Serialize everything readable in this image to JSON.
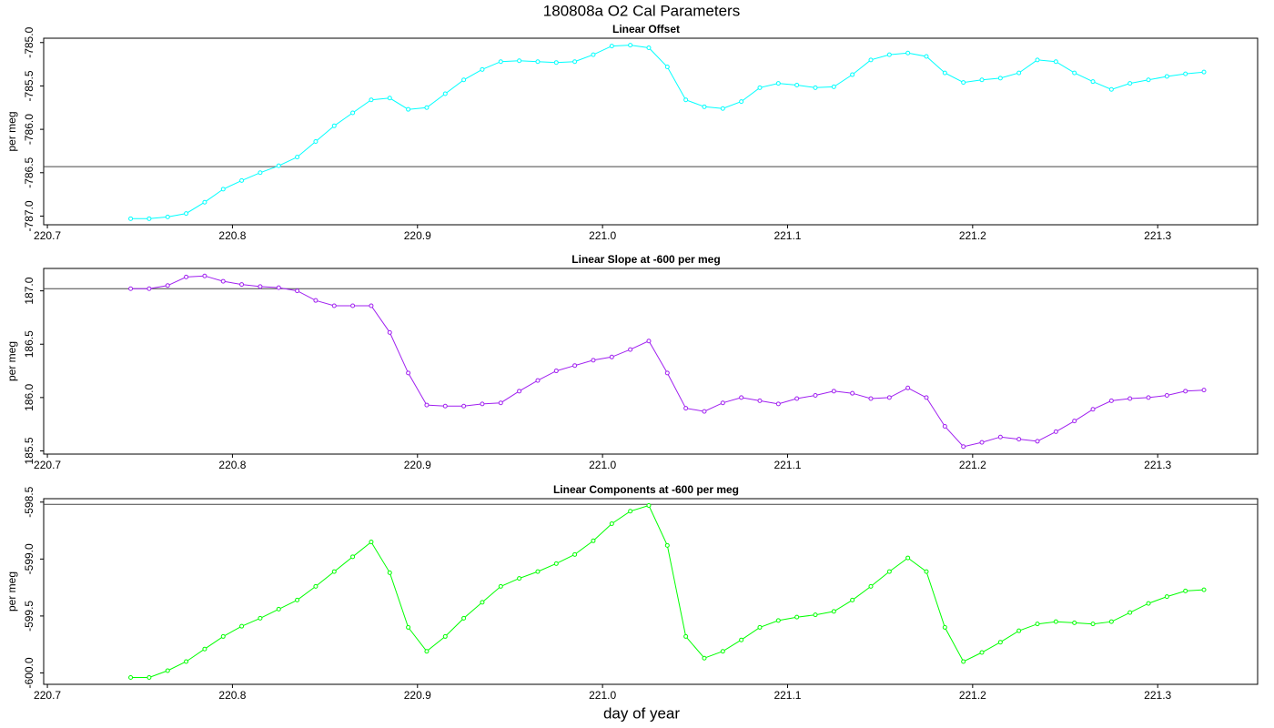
{
  "title": "180808a   O2 Cal Parameters",
  "x_label": "day of year",
  "chart_data": [
    {
      "type": "line",
      "title": "Linear Offset",
      "y_label": "per meg",
      "x": [
        220.745,
        220.755,
        220.765,
        220.775,
        220.785,
        220.795,
        220.805,
        220.815,
        220.825,
        220.835,
        220.845,
        220.855,
        220.865,
        220.875,
        220.885,
        220.895,
        220.905,
        220.915,
        220.925,
        220.935,
        220.945,
        220.955,
        220.965,
        220.975,
        220.985,
        220.995,
        221.005,
        221.015,
        221.025,
        221.035,
        221.045,
        221.055,
        221.065,
        221.075,
        221.085,
        221.095,
        221.105,
        221.115,
        221.125,
        221.135,
        221.145,
        221.155,
        221.165,
        221.175,
        221.185,
        221.195,
        221.205,
        221.215,
        221.225,
        221.235,
        221.245,
        221.255,
        221.265,
        221.275,
        221.285,
        221.295,
        221.305,
        221.315,
        221.325
      ],
      "series": [
        {
          "color": "#00ffff",
          "values": [
            -787.03,
            -787.03,
            -787.01,
            -786.97,
            -786.84,
            -786.69,
            -786.59,
            -786.5,
            -786.42,
            -786.32,
            -786.14,
            -785.96,
            -785.81,
            -785.66,
            -785.64,
            -785.77,
            -785.75,
            -785.59,
            -785.43,
            -785.31,
            -785.22,
            -785.21,
            -785.22,
            -785.23,
            -785.22,
            -785.14,
            -785.04,
            -785.03,
            -785.06,
            -785.28,
            -785.66,
            -785.74,
            -785.76,
            -785.68,
            -785.52,
            -785.47,
            -785.49,
            -785.52,
            -785.51,
            -785.37,
            -785.2,
            -785.14,
            -785.12,
            -785.16,
            -785.35,
            -785.46,
            -785.43,
            -785.41,
            -785.35,
            -785.2,
            -785.22,
            -785.35,
            -785.45,
            -785.54,
            -785.47,
            -785.43,
            -785.39,
            -785.36,
            -785.34
          ]
        }
      ],
      "hline": -786.43,
      "xlim": [
        220.698,
        221.354
      ],
      "xticks": [
        220.7,
        220.8,
        220.9,
        {
          "value": 221,
          "label": "221.0"
        },
        221.1,
        221.2,
        221.3
      ],
      "ylim": [
        -787.1,
        -784.95
      ],
      "yticks": [
        {
          "value": -787,
          "label": "-787.0"
        },
        -786.5,
        {
          "value": -786,
          "label": "-786.0"
        },
        -785.5,
        {
          "value": -785,
          "label": "-785.0"
        }
      ]
    },
    {
      "type": "line",
      "title": "Linear Slope at -600 per meg",
      "y_label": "per meg",
      "x": [
        220.745,
        220.755,
        220.765,
        220.775,
        220.785,
        220.795,
        220.805,
        220.815,
        220.825,
        220.835,
        220.845,
        220.855,
        220.865,
        220.875,
        220.885,
        220.895,
        220.905,
        220.915,
        220.925,
        220.935,
        220.945,
        220.955,
        220.965,
        220.975,
        220.985,
        220.995,
        221.005,
        221.015,
        221.025,
        221.035,
        221.045,
        221.055,
        221.065,
        221.075,
        221.085,
        221.095,
        221.105,
        221.115,
        221.125,
        221.135,
        221.145,
        221.155,
        221.165,
        221.175,
        221.185,
        221.195,
        221.205,
        221.215,
        221.225,
        221.235,
        221.245,
        221.255,
        221.265,
        221.275,
        221.285,
        221.295,
        221.305,
        221.315,
        221.325
      ],
      "series": [
        {
          "color": "#a020f0",
          "values": [
            187.02,
            187.02,
            187.05,
            187.13,
            187.14,
            187.09,
            187.06,
            187.04,
            187.03,
            187.0,
            186.91,
            186.86,
            186.86,
            186.86,
            186.61,
            186.23,
            185.93,
            185.92,
            185.92,
            185.94,
            185.95,
            186.06,
            186.16,
            186.25,
            186.3,
            186.35,
            186.38,
            186.45,
            186.53,
            186.23,
            185.9,
            185.87,
            185.95,
            186.0,
            185.97,
            185.94,
            185.99,
            186.02,
            186.06,
            186.04,
            185.99,
            186.0,
            186.09,
            186.0,
            185.73,
            185.54,
            185.58,
            185.63,
            185.61,
            185.59,
            185.68,
            185.78,
            185.89,
            185.97,
            185.99,
            186.0,
            186.02,
            186.06,
            186.07
          ]
        }
      ],
      "hline": 187.02,
      "xlim": [
        220.698,
        221.354
      ],
      "xticks": [
        220.7,
        220.8,
        220.9,
        {
          "value": 221,
          "label": "221.0"
        },
        221.1,
        221.2,
        221.3
      ],
      "ylim": [
        185.47,
        187.21
      ],
      "yticks": [
        185.5,
        {
          "value": 186,
          "label": "186.0"
        },
        186.5,
        {
          "value": 187,
          "label": "187.0"
        }
      ]
    },
    {
      "type": "line",
      "title": "Linear Components at -600 per meg",
      "y_label": "per meg",
      "x": [
        220.745,
        220.755,
        220.765,
        220.775,
        220.785,
        220.795,
        220.805,
        220.815,
        220.825,
        220.835,
        220.845,
        220.855,
        220.865,
        220.875,
        220.885,
        220.895,
        220.905,
        220.915,
        220.925,
        220.935,
        220.945,
        220.955,
        220.965,
        220.975,
        220.985,
        220.995,
        221.005,
        221.015,
        221.025,
        221.035,
        221.045,
        221.055,
        221.065,
        221.075,
        221.085,
        221.095,
        221.105,
        221.115,
        221.125,
        221.135,
        221.145,
        221.155,
        221.165,
        221.175,
        221.185,
        221.195,
        221.205,
        221.215,
        221.225,
        221.235,
        221.245,
        221.255,
        221.265,
        221.275,
        221.285,
        221.295,
        221.305,
        221.315,
        221.325
      ],
      "series": [
        {
          "color": "#00ff00",
          "values": [
            -600.04,
            -600.04,
            -599.98,
            -599.9,
            -599.79,
            -599.68,
            -599.59,
            -599.52,
            -599.44,
            -599.36,
            -599.24,
            -599.11,
            -598.98,
            -598.85,
            -599.12,
            -599.6,
            -599.81,
            -599.68,
            -599.52,
            -599.38,
            -599.24,
            -599.17,
            -599.11,
            -599.04,
            -598.96,
            -598.84,
            -598.69,
            -598.58,
            -598.53,
            -598.88,
            -599.68,
            -599.87,
            -599.81,
            -599.71,
            -599.6,
            -599.54,
            -599.51,
            -599.49,
            -599.46,
            -599.36,
            -599.24,
            -599.11,
            -598.99,
            -599.11,
            -599.6,
            -599.9,
            -599.82,
            -599.73,
            -599.63,
            -599.57,
            -599.55,
            -599.56,
            -599.57,
            -599.55,
            -599.47,
            -599.39,
            -599.33,
            -599.28,
            -599.27
          ]
        }
      ],
      "hline": -598.52,
      "xlim": [
        220.698,
        221.354
      ],
      "xticks": [
        220.7,
        220.8,
        220.9,
        {
          "value": 221,
          "label": "221.0"
        },
        221.1,
        221.2,
        221.3
      ],
      "ylim": [
        -600.1,
        -598.47
      ],
      "yticks": [
        {
          "value": -600,
          "label": "-600.0"
        },
        -599.5,
        {
          "value": -599,
          "label": "-599.0"
        },
        -598.5
      ]
    }
  ]
}
